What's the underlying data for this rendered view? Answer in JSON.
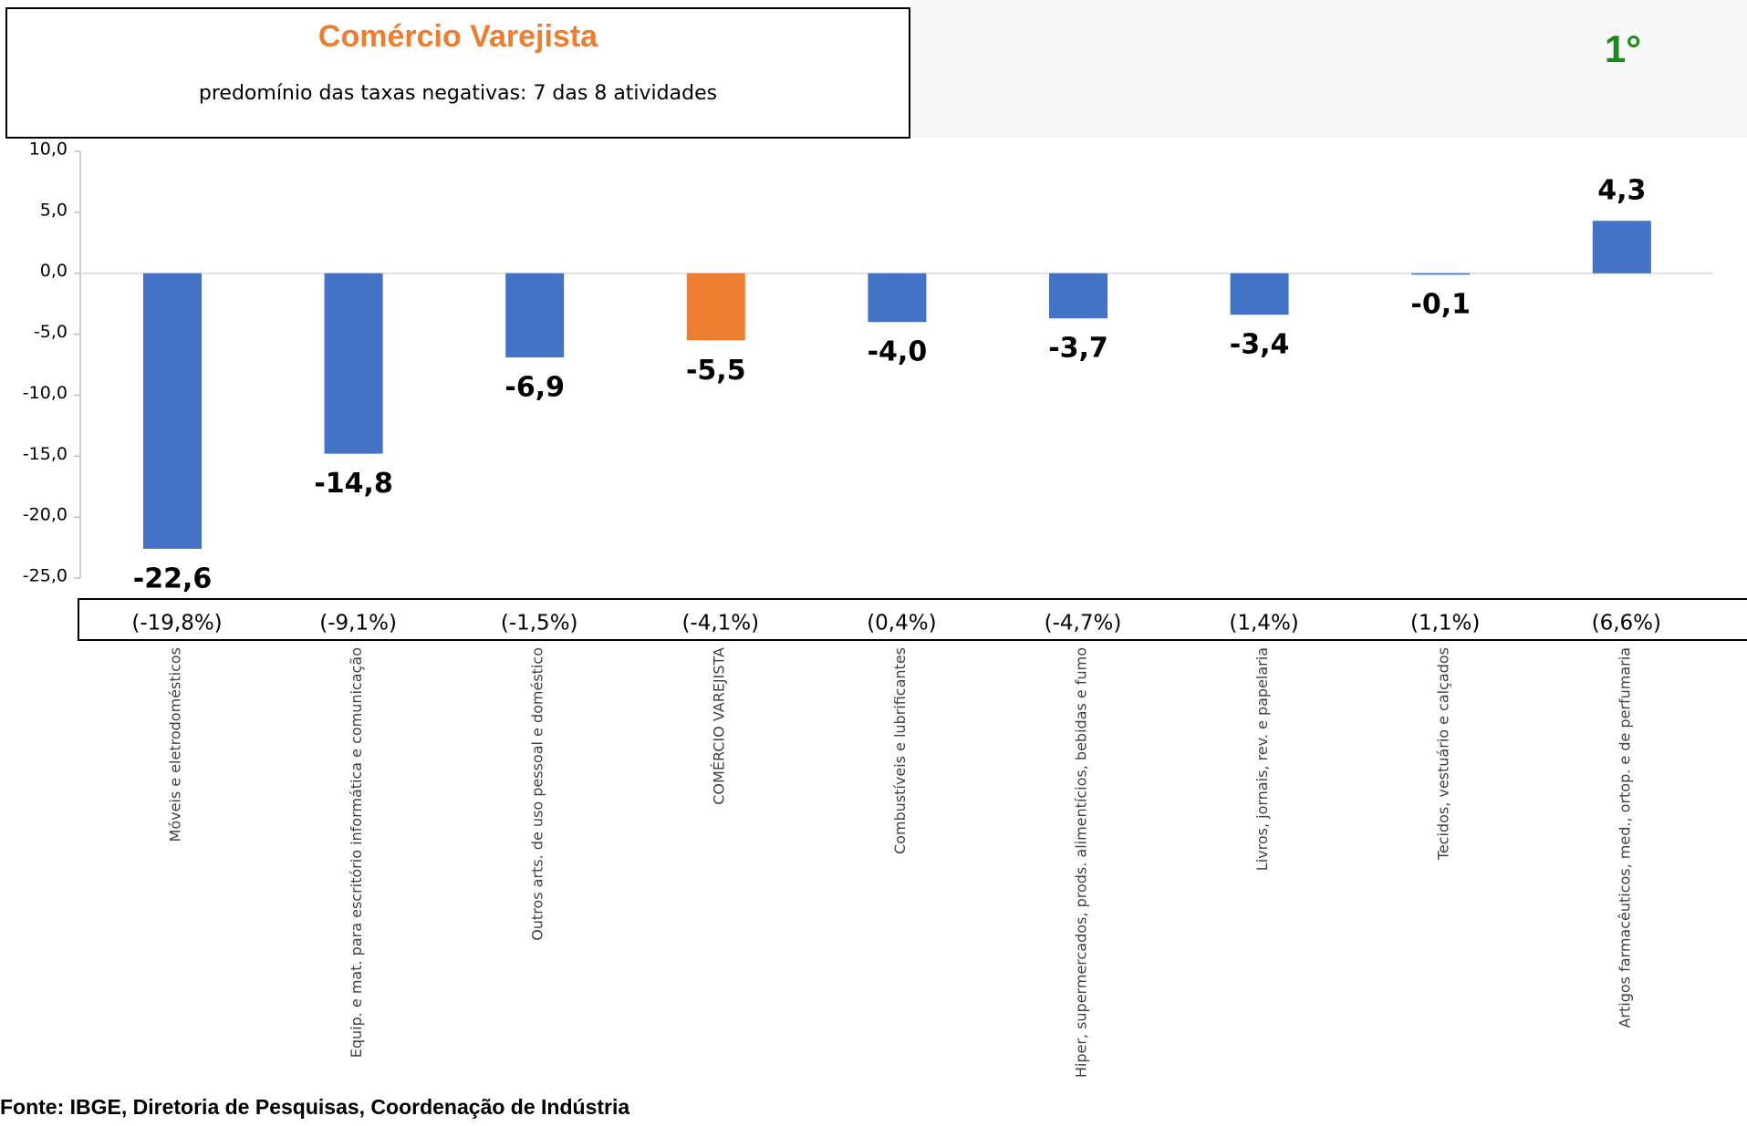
{
  "chart_data": {
    "type": "bar",
    "title": "Comércio Varejista",
    "subtitle": "predomínio das taxas negativas: 7 das 8 atividades",
    "rank": "1°",
    "source": "Fonte: IBGE, Diretoria de Pesquisas, Coordenação de Indústria",
    "categories": [
      "Móveis e eletrodomésticos",
      "Equip. e mat. para escritório informática e comunicação",
      "Outros arts. de uso pessoal e doméstico",
      "COMÉRCIO VAREJISTA",
      "Combustíveis e lubrificantes",
      "Hiper, supermercados, prods.  alimentícios, bebidas e fumo",
      "Livros, jornais, rev. e papelaria",
      "Tecidos, vestuário e calçados",
      "Artigos farmacêuticos, med., ortop. e de perfumaria"
    ],
    "values": [
      -22.6,
      -14.8,
      -6.9,
      -5.5,
      -4.0,
      -3.7,
      -3.4,
      -0.1,
      4.3
    ],
    "value_labels": [
      "-22,6",
      "-14,8",
      "-6,9",
      "-5,5",
      "-4,0",
      "-3,7",
      "-3,4",
      "-0,1",
      "4,3"
    ],
    "secondary_labels": [
      "(-19,8%)",
      "(-9,1%)",
      "(-1,5%)",
      "(-4,1%)",
      "(0,4%)",
      "(-4,7%)",
      "(1,4%)",
      "(1,1%)",
      "(6,6%)"
    ],
    "colors": [
      "#4472c4",
      "#4472c4",
      "#4472c4",
      "#ed7d31",
      "#4472c4",
      "#4472c4",
      "#4472c4",
      "#4472c4",
      "#4472c4"
    ],
    "ylim": [
      -25,
      10
    ],
    "yticks": [
      {
        "value": -25,
        "label": "-25,0"
      },
      {
        "value": -20,
        "label": "-20,0"
      },
      {
        "value": -15,
        "label": "-15,0"
      },
      {
        "value": -10,
        "label": "-10,0"
      },
      {
        "value": -5,
        "label": "-5,0"
      },
      {
        "value": 0,
        "label": "0,0"
      },
      {
        "value": 5,
        "label": "5,0"
      },
      {
        "value": 10,
        "label": "10,0"
      }
    ]
  }
}
